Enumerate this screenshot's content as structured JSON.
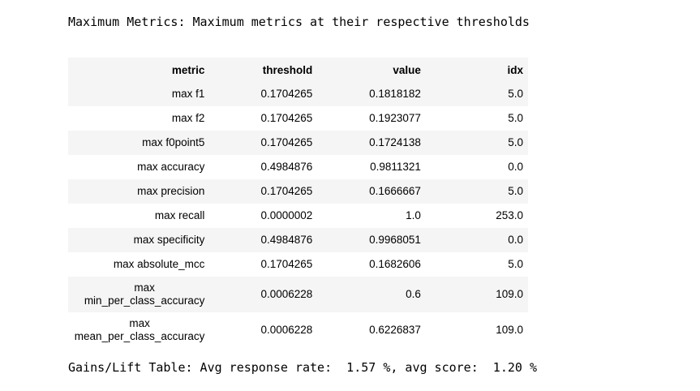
{
  "caption": "Maximum Metrics: Maximum metrics at their respective thresholds",
  "table": {
    "headers": [
      "metric",
      "threshold",
      "value",
      "idx"
    ],
    "rows": [
      {
        "metric": "max f1",
        "threshold": "0.1704265",
        "value": "0.1818182",
        "idx": "5.0"
      },
      {
        "metric": "max f2",
        "threshold": "0.1704265",
        "value": "0.1923077",
        "idx": "5.0"
      },
      {
        "metric": "max f0point5",
        "threshold": "0.1704265",
        "value": "0.1724138",
        "idx": "5.0"
      },
      {
        "metric": "max accuracy",
        "threshold": "0.4984876",
        "value": "0.9811321",
        "idx": "0.0"
      },
      {
        "metric": "max precision",
        "threshold": "0.1704265",
        "value": "0.1666667",
        "idx": "5.0"
      },
      {
        "metric": "max recall",
        "threshold": "0.0000002",
        "value": "1.0",
        "idx": "253.0"
      },
      {
        "metric": "max specificity",
        "threshold": "0.4984876",
        "value": "0.9968051",
        "idx": "0.0"
      },
      {
        "metric": "max absolute_mcc",
        "threshold": "0.1704265",
        "value": "0.1682606",
        "idx": "5.0"
      },
      {
        "metric": "max min_per_class_accuracy",
        "metric_line1": "max",
        "metric_line2": "min_per_class_accuracy",
        "threshold": "0.0006228",
        "value": "0.6",
        "idx": "109.0"
      },
      {
        "metric": "max mean_per_class_accuracy",
        "metric_line1": "max",
        "metric_line2": "mean_per_class_accuracy",
        "threshold": "0.0006228",
        "value": "0.6226837",
        "idx": "109.0"
      }
    ]
  },
  "footer": "Gains/Lift Table: Avg response rate:  1.57 %, avg score:  1.20 %"
}
